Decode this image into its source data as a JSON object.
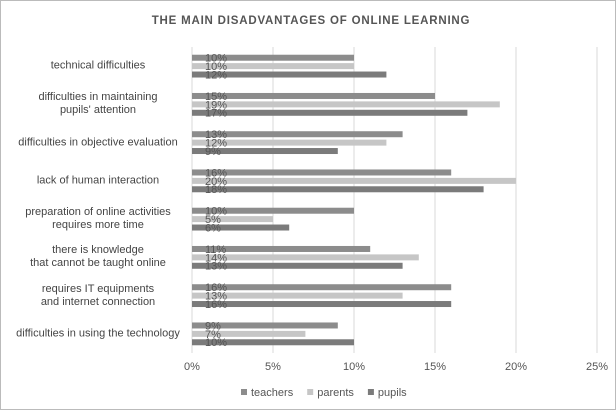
{
  "chart_data": {
    "type": "bar",
    "orientation": "horizontal",
    "title": "THE MAIN DISADVANTAGES OF ONLINE LEARNING",
    "categories": [
      "technical difficulties",
      "difficulties in maintaining\npupils' attention",
      "difficulties in objective evaluation",
      "lack of human interaction",
      "preparation of online activities\nrequires more time",
      "there is knowledge\nthat cannot be taught online",
      "requires IT equipments\nand internet connection",
      "difficulties in using the technology"
    ],
    "series": [
      {
        "name": "teachers",
        "color": "#8c8c8c",
        "values": [
          10,
          15,
          13,
          16,
          10,
          11,
          16,
          9
        ],
        "value_labels": [
          "10%",
          "15%",
          "13%",
          "16%",
          "10%",
          "11%",
          "16%",
          "9%"
        ]
      },
      {
        "name": "parents",
        "color": "#c6c6c6",
        "values": [
          10,
          19,
          12,
          20,
          5,
          14,
          13,
          7
        ],
        "value_labels": [
          "10%",
          "19%",
          "12%",
          "20%",
          "5%",
          "14%",
          "13%",
          "7%"
        ]
      },
      {
        "name": "pupils",
        "color": "#7b7b7b",
        "values": [
          12,
          17,
          9,
          18,
          6,
          13,
          16,
          10
        ],
        "value_labels": [
          "12%",
          "17%",
          "9%",
          "18%",
          "6%",
          "13%",
          "16%",
          "10%"
        ]
      }
    ],
    "xlim": [
      0,
      25
    ],
    "xticks": [
      {
        "value": 0,
        "label": "0%"
      },
      {
        "value": 5,
        "label": "5%"
      },
      {
        "value": 10,
        "label": "10%"
      },
      {
        "value": 15,
        "label": "15%"
      },
      {
        "value": 20,
        "label": "20%"
      },
      {
        "value": 25,
        "label": "25%"
      }
    ],
    "grid": true,
    "legend": "bottom"
  }
}
